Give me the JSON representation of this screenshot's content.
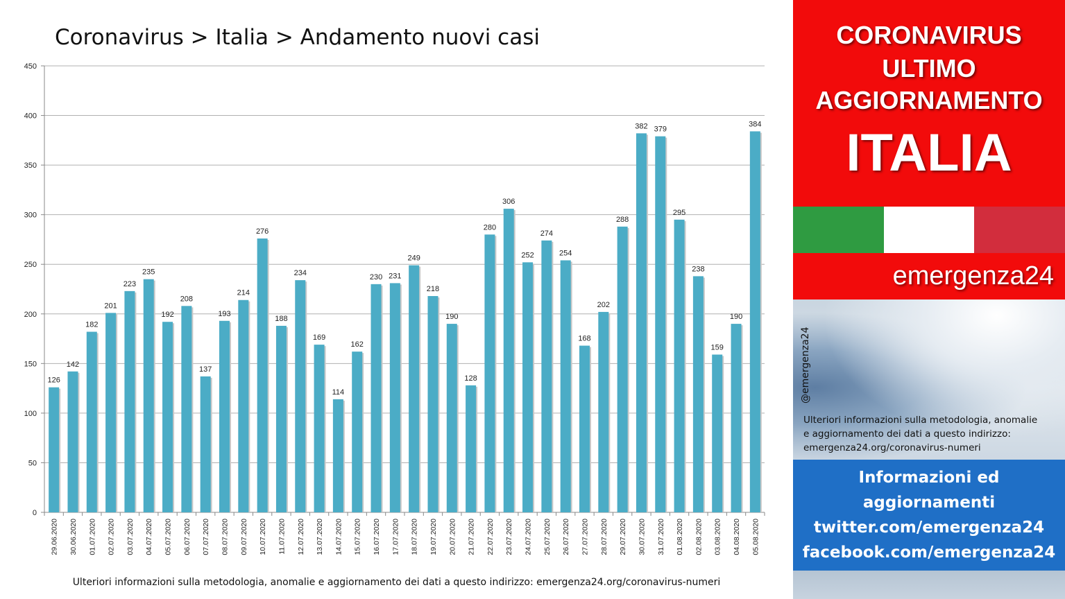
{
  "chart": {
    "title": "Coronavirus > Italia > Andamento nuovi casi",
    "footer": "Ulteriori informazioni sulla metodologia, anomalie e aggiornamento dei dati a questo indirizzo: emergenza24.org/coronavirus-numeri"
  },
  "chart_data": {
    "type": "bar",
    "title": "Coronavirus > Italia > Andamento nuovi casi",
    "xlabel": "",
    "ylabel": "",
    "ylim": [
      0,
      450
    ],
    "yticks": [
      0,
      50,
      100,
      150,
      200,
      250,
      300,
      350,
      400,
      450
    ],
    "grid": true,
    "bar_color": "#4bacc6",
    "categories": [
      "29.06.2020",
      "30.06.2020",
      "01.07.2020",
      "02.07.2020",
      "03.07.2020",
      "04.07.2020",
      "05.07.2020",
      "06.07.2020",
      "07.07.2020",
      "08.07.2020",
      "09.07.2020",
      "10.07.2020",
      "11.07.2020",
      "12.07.2020",
      "13.07.2020",
      "14.07.2020",
      "15.07.2020",
      "16.07.2020",
      "17.07.2020",
      "18.07.2020",
      "19.07.2020",
      "20.07.2020",
      "21.07.2020",
      "22.07.2020",
      "23.07.2020",
      "24.07.2020",
      "25.07.2020",
      "26.07.2020",
      "27.07.2020",
      "28.07.2020",
      "29.07.2020",
      "30.07.2020",
      "31.07.2020",
      "01.08.2020",
      "02.08.2020",
      "03.08.2020",
      "04.08.2020",
      "05.08.2020"
    ],
    "values": [
      126,
      142,
      182,
      201,
      223,
      235,
      192,
      208,
      137,
      193,
      214,
      276,
      188,
      234,
      169,
      114,
      162,
      230,
      231,
      249,
      218,
      190,
      128,
      280,
      306,
      252,
      274,
      254,
      168,
      202,
      288,
      382,
      379,
      295,
      238,
      159,
      190,
      384
    ]
  },
  "sidebar": {
    "headline_lines": [
      "CORONAVIRUS",
      "ULTIMO",
      "AGGIORNAMENTO",
      "ITALIA"
    ],
    "flag_colors": [
      "#2f9b41",
      "#ffffff",
      "#d22d3d"
    ],
    "brand": "emergenza24",
    "handle": "@emergenza24",
    "note_lines": [
      "Ulteriori informazioni sulla metodologia, anomalie",
      "e aggiornamento dei dati a questo indirizzo:",
      "emergenza24.org/coronavirus-numeri"
    ],
    "info_lines": [
      "Informazioni ed",
      "aggiornamenti",
      "twitter.com/emergenza24",
      "facebook.com/emergenza24"
    ]
  },
  "colors": {
    "red": "#f20b0b",
    "blue": "#1f6fc6",
    "bar": "#4bacc6"
  }
}
